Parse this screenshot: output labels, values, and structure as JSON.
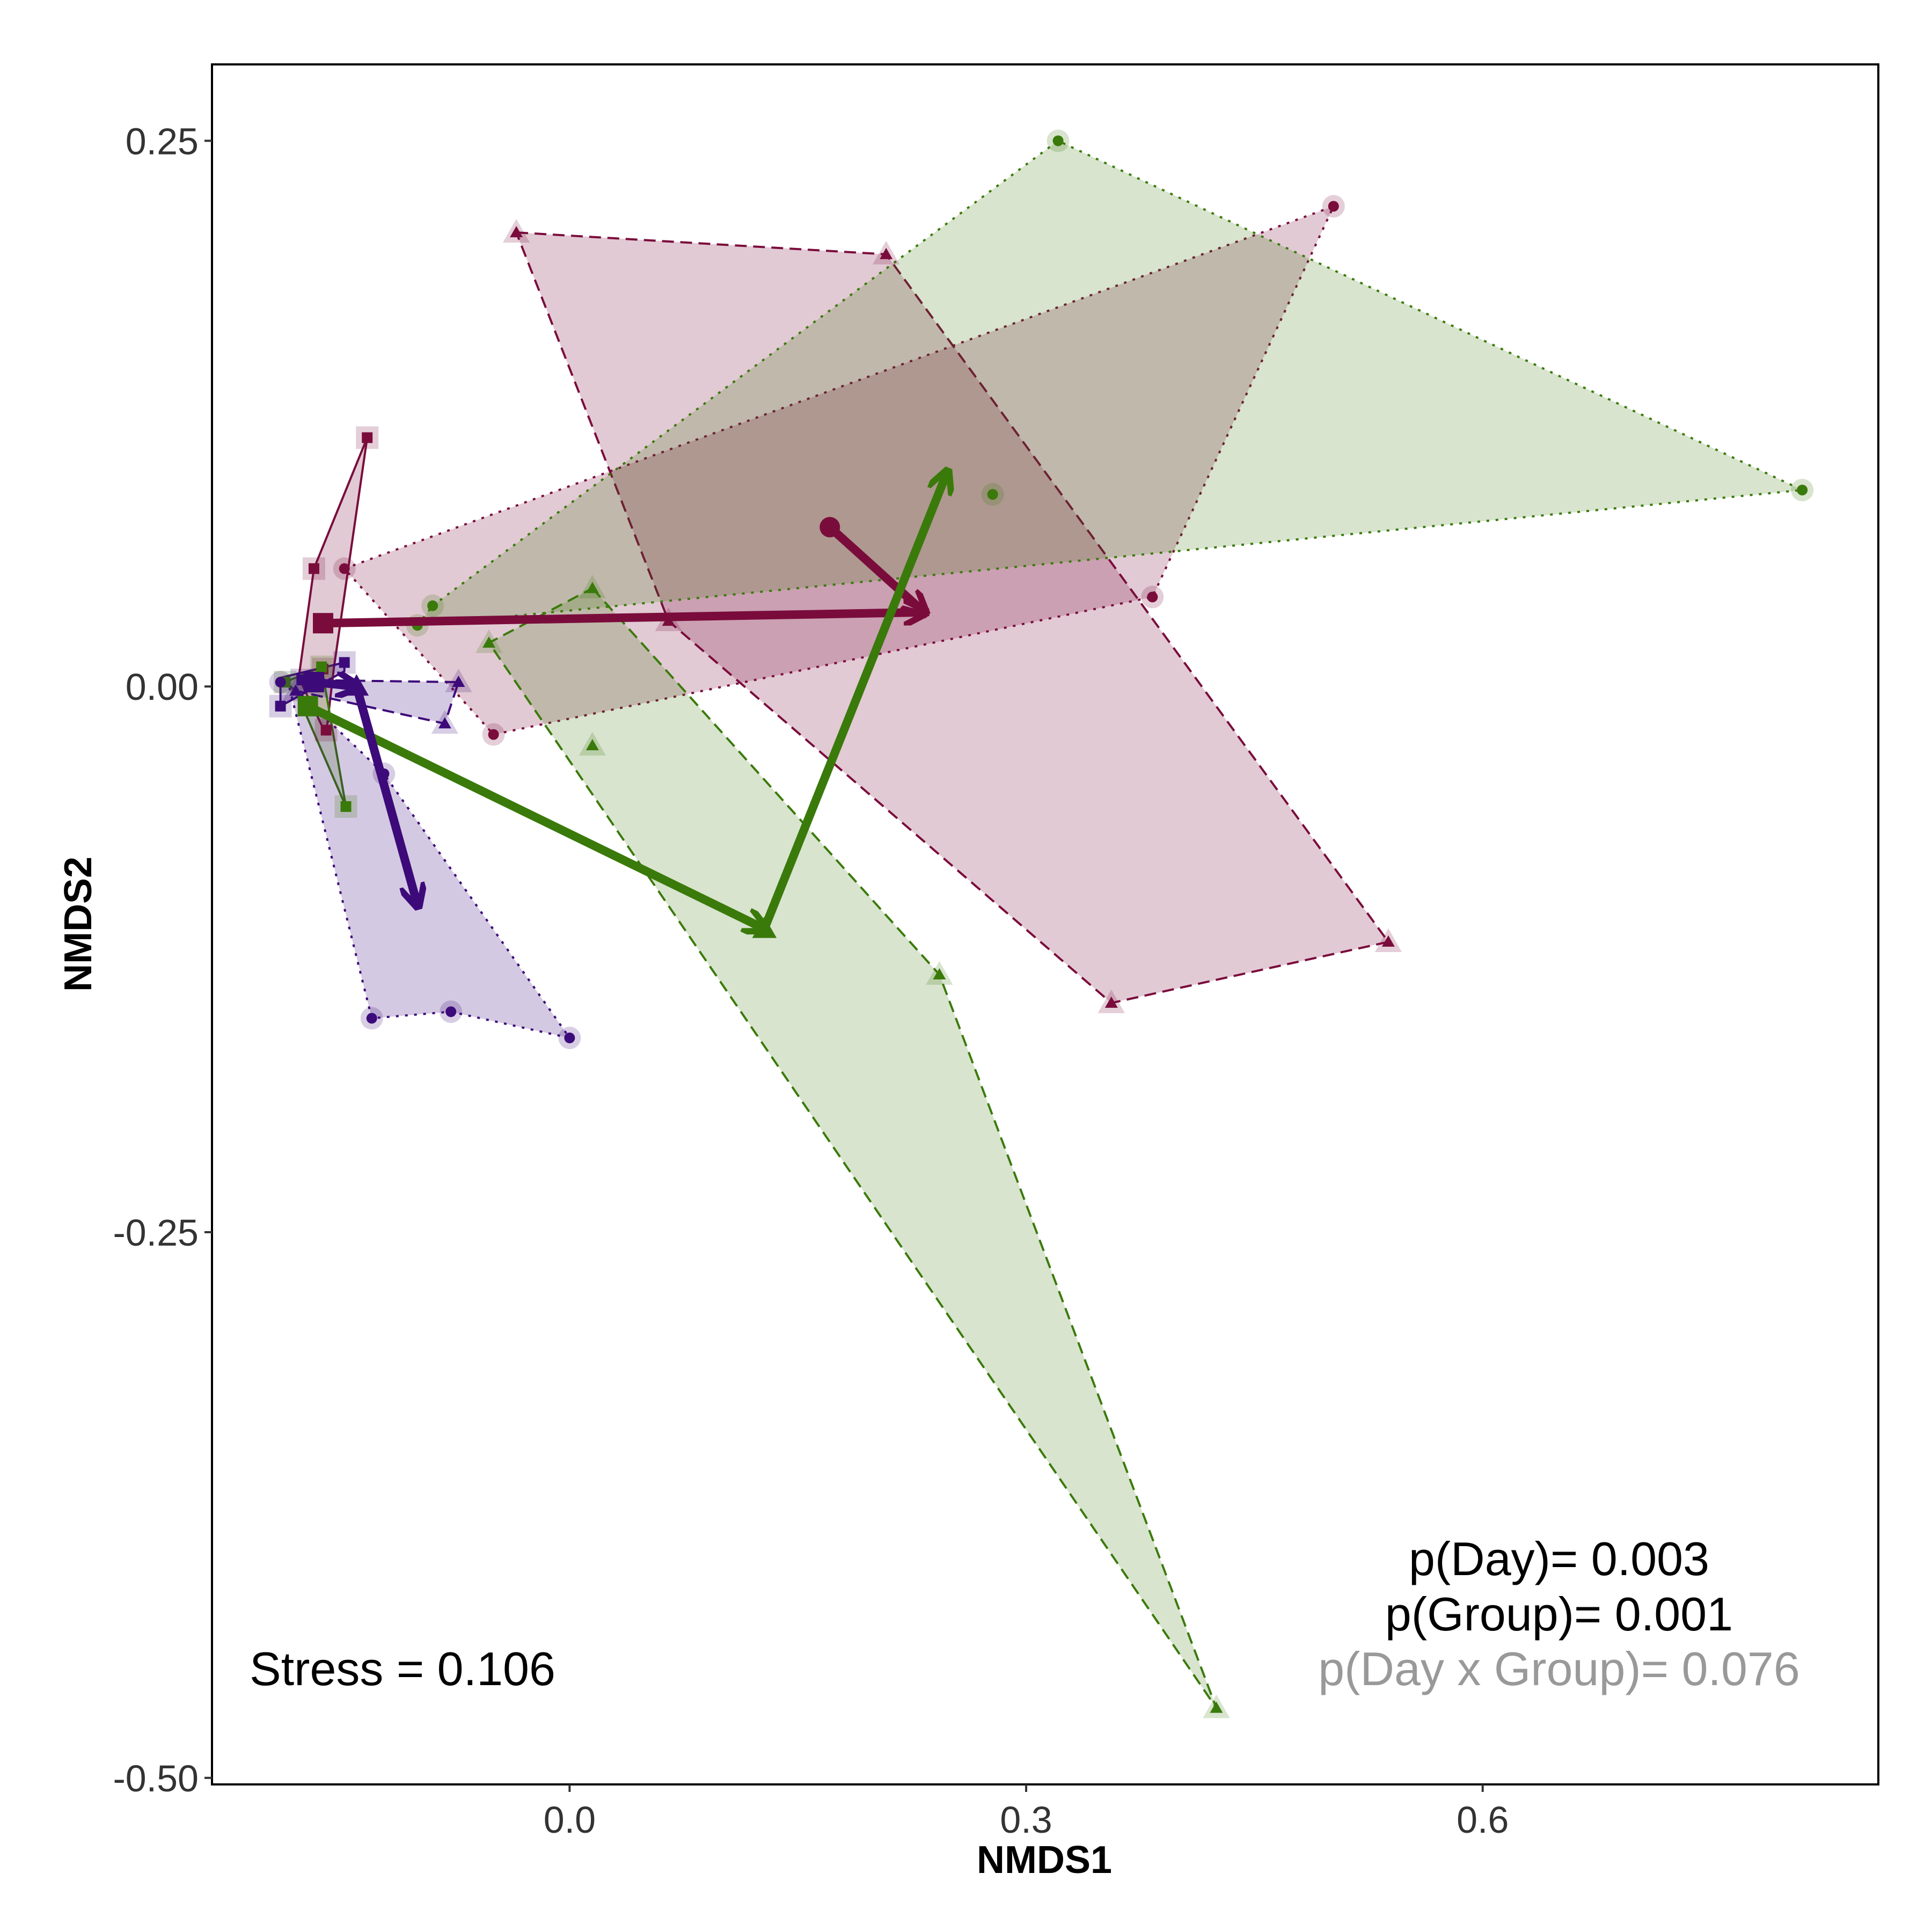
{
  "chart_data": {
    "type": "scatter",
    "subtype": "nmds-ordination-with-hulls-and-trajectories",
    "xlabel": "NMDS1",
    "ylabel": "NMDS2",
    "xlim": [
      -0.235,
      0.86
    ],
    "ylim": [
      -0.503,
      0.285
    ],
    "x_ticks": [
      {
        "value": 0.0,
        "label": "0.0"
      },
      {
        "value": 0.3,
        "label": "0.3"
      },
      {
        "value": 0.6,
        "label": "0.6"
      }
    ],
    "y_ticks": [
      {
        "value": 0.25,
        "label": "0.25"
      },
      {
        "value": 0.0,
        "label": "0.00"
      },
      {
        "value": -0.25,
        "label": "-0.25"
      },
      {
        "value": -0.5,
        "label": "-0.50"
      }
    ],
    "grid": false,
    "annotations": {
      "stress": "Stress = 0.106",
      "p_day": "p(Day)= 0.003",
      "p_group": "p(Group)= 0.001",
      "p_interaction": "p(Day x Group)= 0.076"
    },
    "colors": {
      "maroon": "#7a0c3c",
      "green": "#3a7a0a",
      "purple": "#3d0a7a",
      "p_significant": "#000000",
      "p_nonsignificant": "#999999"
    },
    "hulls": [
      {
        "group": "maroon",
        "shape": "square",
        "line": "solid",
        "fill_opacity": 0.22,
        "points": [
          [
            -0.133,
            0.114
          ],
          [
            -0.168,
            0.054
          ],
          [
            -0.178,
            0.004
          ],
          [
            -0.16,
            -0.022
          ],
          [
            -0.155,
            0.008
          ]
        ]
      },
      {
        "group": "maroon",
        "shape": "circle",
        "line": "dotted",
        "fill_opacity": 0.22,
        "points": [
          [
            -0.148,
            0.054
          ],
          [
            0.502,
            0.22
          ],
          [
            0.383,
            0.041
          ],
          [
            -0.05,
            -0.022
          ]
        ]
      },
      {
        "group": "maroon",
        "shape": "triangle",
        "line": "dashed",
        "fill_opacity": 0.22,
        "points": [
          [
            -0.035,
            0.208
          ],
          [
            0.208,
            0.198
          ],
          [
            0.538,
            -0.117
          ],
          [
            0.356,
            -0.145
          ],
          [
            0.065,
            0.03
          ]
        ]
      },
      {
        "group": "green",
        "shape": "square",
        "line": "solid",
        "fill_opacity": 0.2,
        "points": [
          [
            -0.187,
            0.002
          ],
          [
            -0.163,
            0.009
          ],
          [
            -0.147,
            -0.055
          ],
          [
            -0.18,
            -0.002
          ]
        ]
      },
      {
        "group": "green",
        "shape": "circle",
        "line": "dotted",
        "fill_opacity": 0.2,
        "points": [
          [
            -0.09,
            0.037
          ],
          [
            0.321,
            0.25
          ],
          [
            0.81,
            0.09
          ],
          [
            -0.1,
            0.028
          ]
        ]
      },
      {
        "group": "green",
        "shape": "triangle",
        "line": "dashed",
        "fill_opacity": 0.2,
        "points": [
          [
            0.015,
            0.045
          ],
          [
            0.243,
            -0.132
          ],
          [
            0.425,
            -0.468
          ],
          [
            -0.053,
            0.02
          ]
        ]
      },
      {
        "group": "purple",
        "shape": "square",
        "line": "solid",
        "fill_opacity": 0.22,
        "points": [
          [
            -0.19,
            0.004
          ],
          [
            -0.148,
            0.011
          ],
          [
            -0.148,
            0.007
          ],
          [
            -0.19,
            -0.009
          ]
        ]
      },
      {
        "group": "purple",
        "shape": "triangle",
        "line": "dashed",
        "fill_opacity": 0.22,
        "points": [
          [
            -0.178,
            0.003
          ],
          [
            -0.073,
            0.002
          ],
          [
            -0.082,
            -0.017
          ],
          [
            -0.18,
            -0.002
          ]
        ]
      },
      {
        "group": "purple",
        "shape": "circle",
        "line": "dotted",
        "fill_opacity": 0.22,
        "points": [
          [
            -0.185,
            0.002
          ],
          [
            -0.122,
            -0.04
          ],
          [
            0.0,
            -0.161
          ],
          [
            -0.078,
            -0.149
          ],
          [
            -0.13,
            -0.152
          ]
        ]
      }
    ],
    "points": [
      {
        "group": "maroon",
        "shape": "square",
        "x": -0.133,
        "y": 0.114
      },
      {
        "group": "maroon",
        "shape": "square",
        "x": -0.168,
        "y": 0.054
      },
      {
        "group": "maroon",
        "shape": "square",
        "x": -0.162,
        "y": 0.008
      },
      {
        "group": "maroon",
        "shape": "square",
        "x": -0.16,
        "y": -0.02
      },
      {
        "group": "maroon",
        "shape": "circle",
        "x": -0.148,
        "y": 0.054
      },
      {
        "group": "maroon",
        "shape": "circle",
        "x": 0.502,
        "y": 0.22
      },
      {
        "group": "maroon",
        "shape": "circle",
        "x": 0.383,
        "y": 0.041
      },
      {
        "group": "maroon",
        "shape": "circle",
        "x": -0.05,
        "y": -0.022
      },
      {
        "group": "maroon",
        "shape": "triangle",
        "x": -0.035,
        "y": 0.208
      },
      {
        "group": "maroon",
        "shape": "triangle",
        "x": 0.208,
        "y": 0.198
      },
      {
        "group": "maroon",
        "shape": "triangle",
        "x": 0.538,
        "y": -0.117
      },
      {
        "group": "maroon",
        "shape": "triangle",
        "x": 0.356,
        "y": -0.145
      },
      {
        "group": "maroon",
        "shape": "triangle",
        "x": 0.065,
        "y": 0.03
      },
      {
        "group": "green",
        "shape": "square",
        "x": -0.147,
        "y": -0.055
      },
      {
        "group": "green",
        "shape": "square",
        "x": -0.163,
        "y": 0.009
      },
      {
        "group": "green",
        "shape": "square",
        "x": -0.187,
        "y": 0.002
      },
      {
        "group": "green",
        "shape": "circle",
        "x": -0.1,
        "y": 0.028
      },
      {
        "group": "green",
        "shape": "circle",
        "x": -0.09,
        "y": 0.037
      },
      {
        "group": "green",
        "shape": "circle",
        "x": 0.321,
        "y": 0.25
      },
      {
        "group": "green",
        "shape": "circle",
        "x": 0.81,
        "y": 0.09
      },
      {
        "group": "green",
        "shape": "circle",
        "x": 0.278,
        "y": 0.088
      },
      {
        "group": "green",
        "shape": "triangle",
        "x": 0.015,
        "y": 0.045
      },
      {
        "group": "green",
        "shape": "triangle",
        "x": -0.053,
        "y": 0.02
      },
      {
        "group": "green",
        "shape": "triangle",
        "x": 0.015,
        "y": -0.027
      },
      {
        "group": "green",
        "shape": "triangle",
        "x": 0.243,
        "y": -0.132
      },
      {
        "group": "green",
        "shape": "triangle",
        "x": 0.425,
        "y": -0.468
      },
      {
        "group": "purple",
        "shape": "square",
        "x": -0.19,
        "y": -0.009
      },
      {
        "group": "purple",
        "shape": "square",
        "x": -0.148,
        "y": 0.011
      },
      {
        "group": "purple",
        "shape": "square",
        "x": -0.176,
        "y": 0.003
      },
      {
        "group": "purple",
        "shape": "triangle",
        "x": -0.073,
        "y": 0.002
      },
      {
        "group": "purple",
        "shape": "triangle",
        "x": -0.082,
        "y": -0.017
      },
      {
        "group": "purple",
        "shape": "triangle",
        "x": -0.18,
        "y": -0.002
      },
      {
        "group": "purple",
        "shape": "circle",
        "x": -0.122,
        "y": -0.04
      },
      {
        "group": "purple",
        "shape": "circle",
        "x": 0.0,
        "y": -0.161
      },
      {
        "group": "purple",
        "shape": "circle",
        "x": -0.078,
        "y": -0.149
      },
      {
        "group": "purple",
        "shape": "circle",
        "x": -0.13,
        "y": -0.152
      },
      {
        "group": "purple",
        "shape": "circle",
        "x": -0.19,
        "y": 0.002
      }
    ],
    "trajectories": [
      {
        "group": "maroon",
        "start_shape": "square",
        "start": [
          -0.162,
          0.029
        ],
        "end": [
          0.233,
          0.034
        ]
      },
      {
        "group": "maroon",
        "start_shape": "circle",
        "start": [
          0.171,
          0.073
        ],
        "end": [
          0.233,
          0.034
        ]
      },
      {
        "group": "green",
        "start_shape": "square",
        "start": [
          -0.172,
          -0.009
        ],
        "end": [
          0.128,
          -0.111
        ]
      },
      {
        "group": "green",
        "start_shape": "triangle",
        "start": [
          0.128,
          -0.111
        ],
        "end": [
          0.248,
          0.098
        ]
      },
      {
        "group": "purple",
        "start_shape": "square",
        "start": [
          -0.168,
          0.002
        ],
        "end": [
          -0.14,
          0.0
        ]
      },
      {
        "group": "purple",
        "start_shape": "triangle",
        "start": [
          -0.14,
          0.0
        ],
        "end": [
          -0.1,
          -0.1
        ]
      }
    ]
  }
}
